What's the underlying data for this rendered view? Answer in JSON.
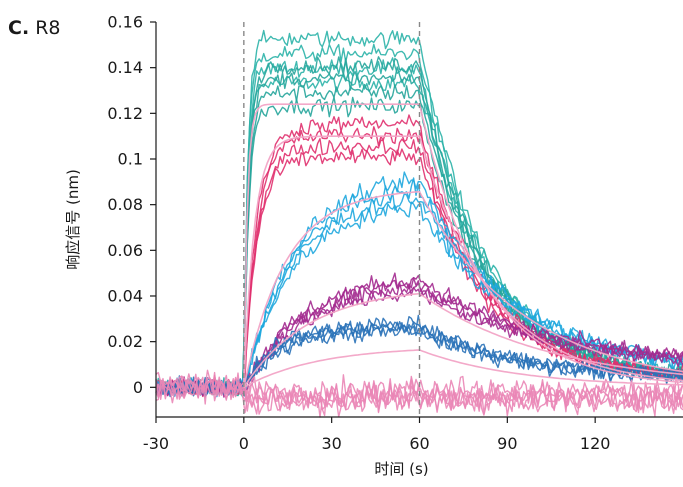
{
  "panel": {
    "letter": "C.",
    "name": "R8"
  },
  "chart_data": {
    "type": "line",
    "title": "",
    "xlabel": "时间 (s)",
    "ylabel": "响应信号 (nm)",
    "xlim": [
      -30,
      150
    ],
    "ylim": [
      -0.013,
      0.16
    ],
    "x_ticks": [
      -30,
      0,
      30,
      60,
      90,
      120
    ],
    "x_tick_labels": [
      "-30",
      "0",
      "30",
      "60",
      "90",
      "120"
    ],
    "y_ticks": [
      0,
      0.02,
      0.04,
      0.06,
      0.08,
      0.1,
      0.12,
      0.14,
      0.16
    ],
    "y_tick_labels": [
      "0",
      "0.02",
      "0.04",
      "0.06",
      "0.08",
      "0.1",
      "0.12",
      "0.14",
      "0.16"
    ],
    "vlines": [
      0,
      60
    ],
    "vline_style": "dashed gray",
    "grid": false,
    "legend": "none",
    "association_end_s": 60,
    "groups": [
      {
        "color": "#2bb3a8",
        "plateau": 0.143,
        "residual": 0.004,
        "k_on": 0.75,
        "k_off": 0.045
      },
      {
        "color": "#26a59b",
        "plateau": 0.132,
        "residual": 0.004,
        "k_on": 0.6,
        "k_off": 0.045
      },
      {
        "color": "#e0306e",
        "plateau": 0.108,
        "residual": 0.004,
        "k_on": 0.22,
        "k_off": 0.045
      },
      {
        "color": "#1fa7de",
        "plateau": 0.087,
        "residual": 0.006,
        "k_on": 0.06,
        "k_off": 0.03
      },
      {
        "color": "#a32a8f",
        "plateau": 0.047,
        "residual": 0.008,
        "k_on": 0.05,
        "k_off": 0.022
      },
      {
        "color": "#2a72b8",
        "plateau": 0.026,
        "residual": 0.004,
        "k_on": 0.09,
        "k_off": 0.03
      },
      {
        "color": "#ea86b6",
        "plateau": 0.0,
        "residual": 0.0,
        "k_on": 0.1,
        "k_off": 0.05
      }
    ],
    "fit_curves": {
      "color": "#f2a4c6",
      "series": [
        {
          "plateau": 0.124,
          "k_on": 0.85,
          "k_off": 0.045
        },
        {
          "plateau": 0.11,
          "k_on": 0.28,
          "k_off": 0.04
        },
        {
          "plateau": 0.087,
          "k_on": 0.07,
          "k_off": 0.028
        },
        {
          "plateau": 0.044,
          "k_on": 0.045,
          "k_off": 0.022
        },
        {
          "plateau": 0.018,
          "k_on": 0.04,
          "k_off": 0.03
        }
      ]
    }
  }
}
